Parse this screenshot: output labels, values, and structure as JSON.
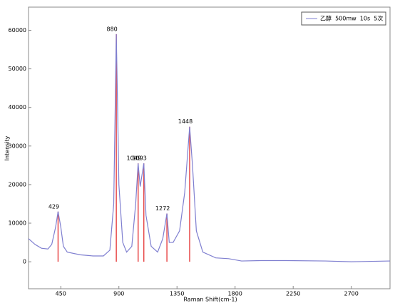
{
  "chart_data": {
    "type": "line",
    "x_label": "Raman Shift(cm-1)",
    "y_label": "Intensity",
    "x": [
      200,
      250,
      300,
      350,
      380,
      410,
      429,
      450,
      470,
      500,
      600,
      700,
      780,
      830,
      860,
      880,
      890,
      900,
      930,
      960,
      1000,
      1030,
      1049,
      1065,
      1093,
      1110,
      1150,
      1200,
      1240,
      1272,
      1290,
      1320,
      1370,
      1410,
      1448,
      1470,
      1500,
      1550,
      1650,
      1750,
      1850,
      2000,
      2200,
      2500,
      2700,
      3000
    ],
    "series": [
      {
        "name": "乙醇  500mw  10s  5次",
        "color": "#7f7fd0",
        "values": [
          6000,
          4500,
          3500,
          3300,
          4500,
          9000,
          13000,
          9000,
          4000,
          2500,
          1800,
          1500,
          1500,
          3000,
          15000,
          59000,
          40000,
          20000,
          5000,
          2500,
          4000,
          15000,
          25500,
          19500,
          25500,
          12000,
          4000,
          2500,
          6000,
          12500,
          5000,
          5000,
          8000,
          18000,
          35000,
          25000,
          8000,
          2500,
          1000,
          800,
          200,
          300,
          300,
          200,
          0,
          200
        ]
      }
    ],
    "peaks": {
      "color": "#e84a4a",
      "x": [
        429,
        880,
        1049,
        1093,
        1272,
        1448
      ],
      "values": [
        13000,
        59000,
        25500,
        25500,
        12500,
        35000
      ]
    },
    "xlim": [
      200,
      3000
    ],
    "ylim": [
      -7000,
      66000
    ],
    "xticks": [
      450,
      900,
      1350,
      1800,
      2250,
      2700
    ],
    "yticks": [
      0,
      10000,
      20000,
      30000,
      40000,
      50000,
      60000
    ],
    "legend": "top-right"
  }
}
